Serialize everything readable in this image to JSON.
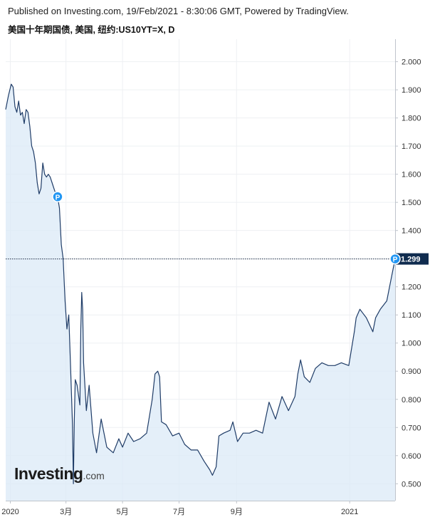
{
  "header": {
    "published": "Published on Investing.com, 19/Feb/2021 - 8:30:06 GMT, Powered by TradingView.",
    "title": "美国十年期国债, 美国, 纽约:US10YT=X, D"
  },
  "logo": {
    "main": "Investing",
    "domain": ".com"
  },
  "colors": {
    "line": "#1f3c67",
    "fill": "#dbe9f7",
    "marker": "#2196f3",
    "price_tag": "#102c4f"
  },
  "chart_data": {
    "type": "area",
    "title": "美国十年期国债, 美国, 纽约:US10YT=X, D",
    "xlabel": "",
    "ylabel": "",
    "ylim": [
      0.44,
      2.08
    ],
    "yticks": [
      0.5,
      0.6,
      0.7,
      0.8,
      0.9,
      1.0,
      1.1,
      1.2,
      1.3,
      1.4,
      1.5,
      1.6,
      1.7,
      1.8,
      1.9,
      2.0
    ],
    "ytick_labels": [
      "0.500",
      "0.600",
      "0.700",
      "0.800",
      "0.900",
      "1.000",
      "1.100",
      "1.200",
      "1.300",
      "1.400",
      "1.500",
      "1.600",
      "1.700",
      "1.800",
      "1.900",
      "2.000"
    ],
    "xlim": [
      "2019-12-27",
      "2021-02-19"
    ],
    "xticks": [
      {
        "date": "2020-01-01",
        "label": "2020"
      },
      {
        "date": "2020-03-01",
        "label": "3月"
      },
      {
        "date": "2020-05-01",
        "label": "5月"
      },
      {
        "date": "2020-07-01",
        "label": "7月"
      },
      {
        "date": "2020-09-01",
        "label": "9月"
      },
      {
        "date": "2021-01-01",
        "label": "2021"
      }
    ],
    "last_value": 1.299,
    "last_value_label": "1.299",
    "grid": true,
    "markers": [
      {
        "date": "2020-02-21",
        "value": 1.52,
        "label": "P"
      },
      {
        "date": "2021-02-19",
        "value": 1.299,
        "label": "P"
      }
    ],
    "x": [
      "2019-12-27",
      "2019-12-30",
      "2020-01-02",
      "2020-01-04",
      "2020-01-06",
      "2020-01-08",
      "2020-01-10",
      "2020-01-12",
      "2020-01-14",
      "2020-01-16",
      "2020-01-18",
      "2020-01-20",
      "2020-01-22",
      "2020-01-24",
      "2020-01-26",
      "2020-01-28",
      "2020-01-30",
      "2020-02-01",
      "2020-02-03",
      "2020-02-05",
      "2020-02-07",
      "2020-02-09",
      "2020-02-11",
      "2020-02-13",
      "2020-02-15",
      "2020-02-17",
      "2020-02-19",
      "2020-02-21",
      "2020-02-23",
      "2020-02-25",
      "2020-02-27",
      "2020-02-29",
      "2020-03-02",
      "2020-03-04",
      "2020-03-06",
      "2020-03-08",
      "2020-03-09",
      "2020-03-10",
      "2020-03-11",
      "2020-03-13",
      "2020-03-16",
      "2020-03-17",
      "2020-03-18",
      "2020-03-19",
      "2020-03-20",
      "2020-03-23",
      "2020-03-26",
      "2020-03-30",
      "2020-04-03",
      "2020-04-08",
      "2020-04-14",
      "2020-04-21",
      "2020-04-27",
      "2020-05-01",
      "2020-05-07",
      "2020-05-13",
      "2020-05-20",
      "2020-05-27",
      "2020-06-02",
      "2020-06-05",
      "2020-06-08",
      "2020-06-10",
      "2020-06-12",
      "2020-06-17",
      "2020-06-24",
      "2020-07-01",
      "2020-07-07",
      "2020-07-14",
      "2020-07-21",
      "2020-07-28",
      "2020-08-03",
      "2020-08-06",
      "2020-08-10",
      "2020-08-13",
      "2020-08-18",
      "2020-08-25",
      "2020-08-28",
      "2020-09-02",
      "2020-09-08",
      "2020-09-15",
      "2020-09-22",
      "2020-09-29",
      "2020-10-06",
      "2020-10-13",
      "2020-10-20",
      "2020-10-27",
      "2020-11-03",
      "2020-11-06",
      "2020-11-09",
      "2020-11-13",
      "2020-11-19",
      "2020-11-25",
      "2020-12-02",
      "2020-12-09",
      "2020-12-16",
      "2020-12-23",
      "2020-12-31",
      "2021-01-06",
      "2021-01-08",
      "2021-01-12",
      "2021-01-19",
      "2021-01-26",
      "2021-01-29",
      "2021-02-03",
      "2021-02-10",
      "2021-02-16",
      "2021-02-19"
    ],
    "series": [
      {
        "values": [
          1.83,
          1.88,
          1.92,
          1.91,
          1.84,
          1.82,
          1.86,
          1.81,
          1.82,
          1.78,
          1.83,
          1.82,
          1.77,
          1.7,
          1.68,
          1.64,
          1.57,
          1.53,
          1.55,
          1.64,
          1.6,
          1.59,
          1.6,
          1.59,
          1.57,
          1.55,
          1.53,
          1.52,
          1.48,
          1.35,
          1.3,
          1.15,
          1.05,
          1.1,
          0.91,
          0.71,
          0.5,
          0.73,
          0.87,
          0.85,
          0.78,
          1.05,
          1.18,
          1.12,
          0.93,
          0.76,
          0.85,
          0.68,
          0.61,
          0.73,
          0.63,
          0.61,
          0.66,
          0.63,
          0.68,
          0.65,
          0.66,
          0.68,
          0.8,
          0.89,
          0.9,
          0.88,
          0.72,
          0.71,
          0.67,
          0.68,
          0.64,
          0.62,
          0.62,
          0.58,
          0.55,
          0.53,
          0.56,
          0.67,
          0.68,
          0.69,
          0.72,
          0.65,
          0.68,
          0.68,
          0.69,
          0.68,
          0.79,
          0.73,
          0.81,
          0.76,
          0.81,
          0.89,
          0.94,
          0.88,
          0.86,
          0.91,
          0.93,
          0.92,
          0.92,
          0.93,
          0.92,
          1.04,
          1.09,
          1.12,
          1.09,
          1.04,
          1.09,
          1.12,
          1.15,
          1.25,
          1.299
        ]
      }
    ]
  }
}
